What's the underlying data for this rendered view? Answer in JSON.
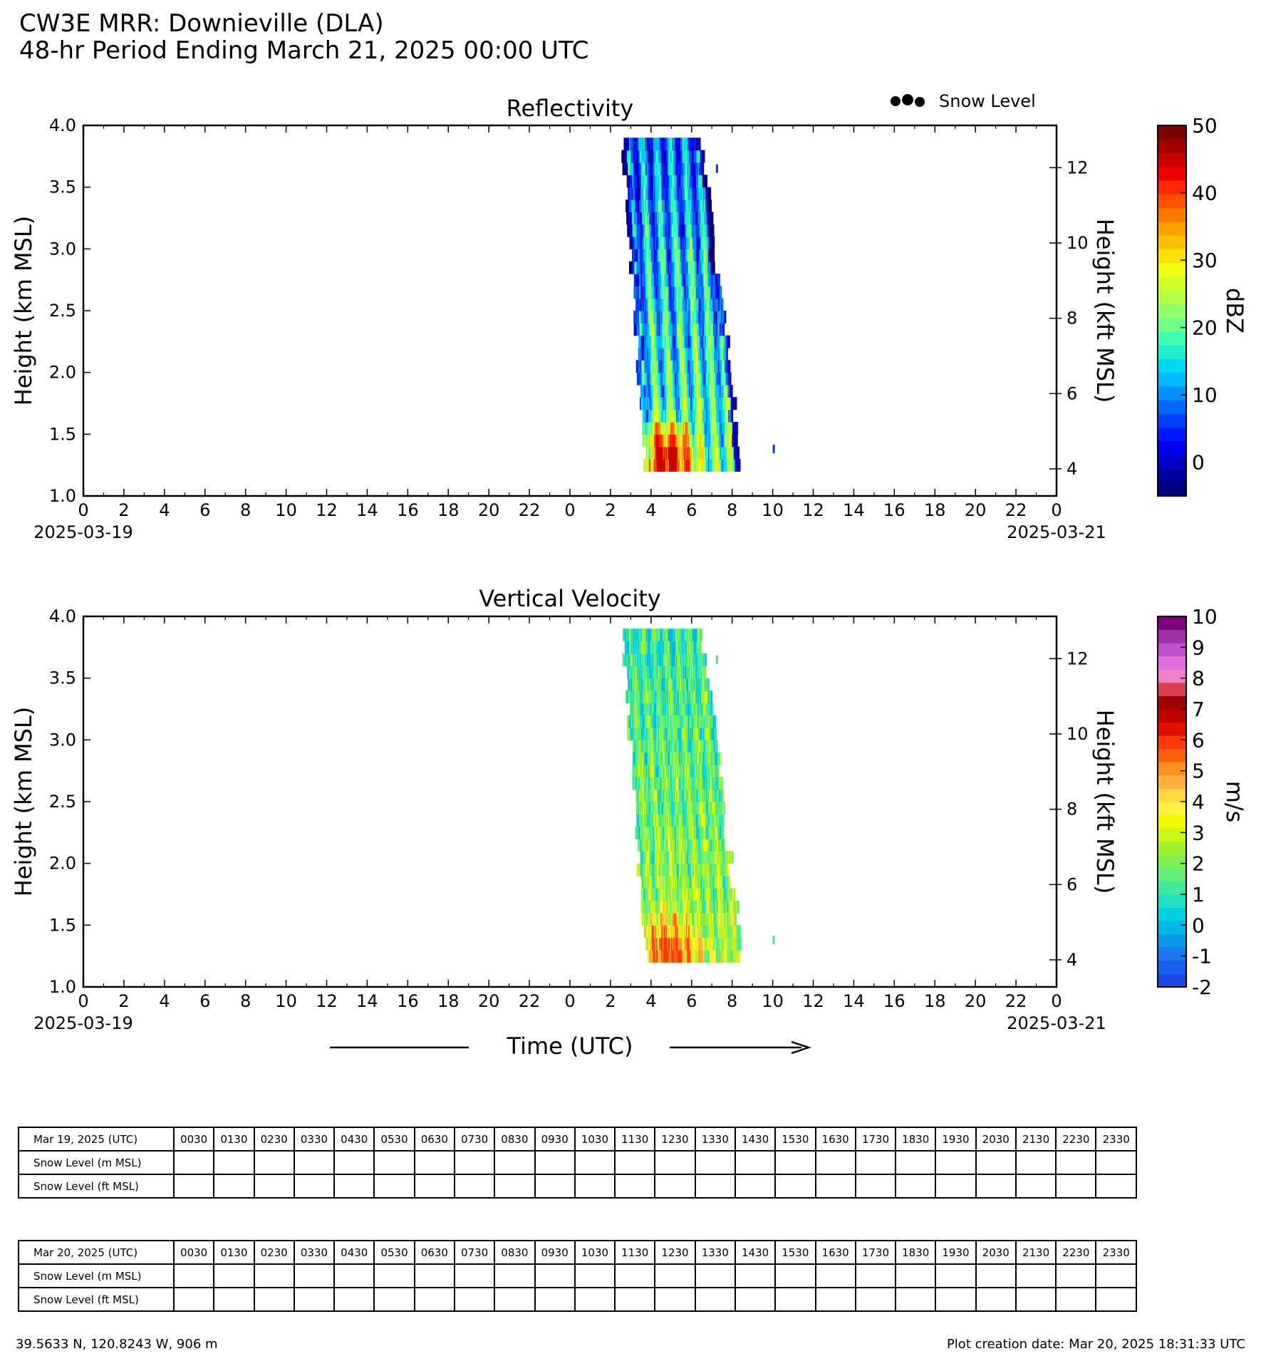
{
  "header": {
    "line1": "CW3E MRR: Downieville (DLA)",
    "line2": "48-hr Period Ending March 21, 2025 00:00 UTC"
  },
  "legend": {
    "marker": "●●●",
    "label": "Snow Level"
  },
  "chart_data": [
    {
      "type": "heatmap",
      "title": "Reflectivity",
      "ylabel": "Height (km MSL)",
      "ylabel_right": "Height (kft MSL)",
      "ylim": [
        1.0,
        4.0
      ],
      "yticks": [
        "1.0",
        "1.5",
        "2.0",
        "2.5",
        "3.0",
        "3.5",
        "4.0"
      ],
      "yticks_right": [
        "4",
        "6",
        "8",
        "10",
        "12"
      ],
      "xticks": [
        "0",
        "2",
        "4",
        "6",
        "8",
        "10",
        "12",
        "14",
        "16",
        "18",
        "20",
        "22",
        "0",
        "2",
        "4",
        "6",
        "8",
        "10",
        "12",
        "14",
        "16",
        "18",
        "20",
        "22",
        "0"
      ],
      "date_start": "2025-03-19",
      "date_end": "2025-03-21",
      "colorbar": {
        "label": "dBZ",
        "min": -5,
        "max": 50,
        "ticks": [
          "0",
          "10",
          "20",
          "30",
          "40",
          "50"
        ],
        "colors": [
          "#000080",
          "#00009e",
          "#0000c8",
          "#0000ee",
          "#0018ff",
          "#0040ff",
          "#0068ff",
          "#0090ff",
          "#00b8ff",
          "#00d8f0",
          "#20f0d0",
          "#40ffb0",
          "#70ff88",
          "#90ff68",
          "#b0ff48",
          "#d0ff28",
          "#f0ff10",
          "#ffe000",
          "#ffc000",
          "#ffa000",
          "#ff7800",
          "#ff5000",
          "#ff2800",
          "#f00000",
          "#c80000",
          "#a00000",
          "#800000"
        ]
      },
      "echo": {
        "start_hour": 26.4,
        "end_hour": 32.6,
        "top_km": 3.9,
        "base_km": 1.2,
        "min_dbz": -3,
        "max_dbz": 44,
        "core": {
          "hour": 28.7,
          "height_km": 1.25,
          "dbz": 44
        },
        "isolated_returns": [
          {
            "hour": 34.0,
            "height_km": 1.38
          },
          {
            "hour": 31.2,
            "height_km": 3.65
          }
        ]
      }
    },
    {
      "type": "heatmap",
      "title": "Vertical Velocity",
      "ylabel": "Height (km MSL)",
      "ylabel_right": "Height (kft MSL)",
      "ylim": [
        1.0,
        4.0
      ],
      "yticks": [
        "1.0",
        "1.5",
        "2.0",
        "2.5",
        "3.0",
        "3.5",
        "4.0"
      ],
      "yticks_right": [
        "4",
        "6",
        "8",
        "10",
        "12"
      ],
      "xticks": [
        "0",
        "2",
        "4",
        "6",
        "8",
        "10",
        "12",
        "14",
        "16",
        "18",
        "20",
        "22",
        "0",
        "2",
        "4",
        "6",
        "8",
        "10",
        "12",
        "14",
        "16",
        "18",
        "20",
        "22",
        "0"
      ],
      "date_start": "2025-03-19",
      "date_end": "2025-03-21",
      "colorbar": {
        "label": "m/s",
        "min": -2,
        "max": 10,
        "ticks": [
          "-2",
          "-1",
          "0",
          "1",
          "2",
          "3",
          "4",
          "5",
          "6",
          "7",
          "8",
          "9",
          "10"
        ],
        "colors": [
          "#1848e8",
          "#1860f0",
          "#1878f0",
          "#0898e8",
          "#00b8e8",
          "#00d0e0",
          "#20e0c0",
          "#40e8a0",
          "#60f078",
          "#80f050",
          "#a0f030",
          "#c8f818",
          "#f0f800",
          "#fff040",
          "#ffd840",
          "#ffb040",
          "#ff9020",
          "#ff6010",
          "#ff3808",
          "#e01000",
          "#c00000",
          "#a00000",
          "#d84050",
          "#f080c8",
          "#e070e0",
          "#c050c8",
          "#a030a8",
          "#800080"
        ]
      },
      "echo": {
        "start_hour": 26.4,
        "end_hour": 32.6,
        "top_km": 3.9,
        "base_km": 1.2,
        "min_ms": 0,
        "max_ms": 6,
        "core": {
          "hour": 28.8,
          "height_km": 1.25,
          "ms": 6
        },
        "isolated_returns": [
          {
            "hour": 34.0,
            "height_km": 1.38
          },
          {
            "hour": 31.2,
            "height_km": 3.65
          }
        ]
      }
    }
  ],
  "xlabel": "Time (UTC)",
  "tables": [
    {
      "date_label": "Mar 19, 2025 (UTC)",
      "times": [
        "0030",
        "0130",
        "0230",
        "0330",
        "0430",
        "0530",
        "0630",
        "0730",
        "0830",
        "0930",
        "1030",
        "1130",
        "1230",
        "1330",
        "1430",
        "1530",
        "1630",
        "1730",
        "1830",
        "1930",
        "2030",
        "2130",
        "2230",
        "2330"
      ],
      "row_m_label": "Snow Level (m MSL)",
      "row_ft_label": "Snow Level (ft MSL)"
    },
    {
      "date_label": "Mar 20, 2025 (UTC)",
      "times": [
        "0030",
        "0130",
        "0230",
        "0330",
        "0430",
        "0530",
        "0630",
        "0730",
        "0830",
        "0930",
        "1030",
        "1130",
        "1230",
        "1330",
        "1430",
        "1530",
        "1630",
        "1730",
        "1830",
        "1930",
        "2030",
        "2130",
        "2230",
        "2330"
      ],
      "row_m_label": "Snow Level (m MSL)",
      "row_ft_label": "Snow Level (ft MSL)"
    }
  ],
  "footer": {
    "location": "39.5633 N, 120.8243 W, 906 m",
    "creation": "Plot creation date: Mar 20, 2025 18:31:33 UTC"
  }
}
